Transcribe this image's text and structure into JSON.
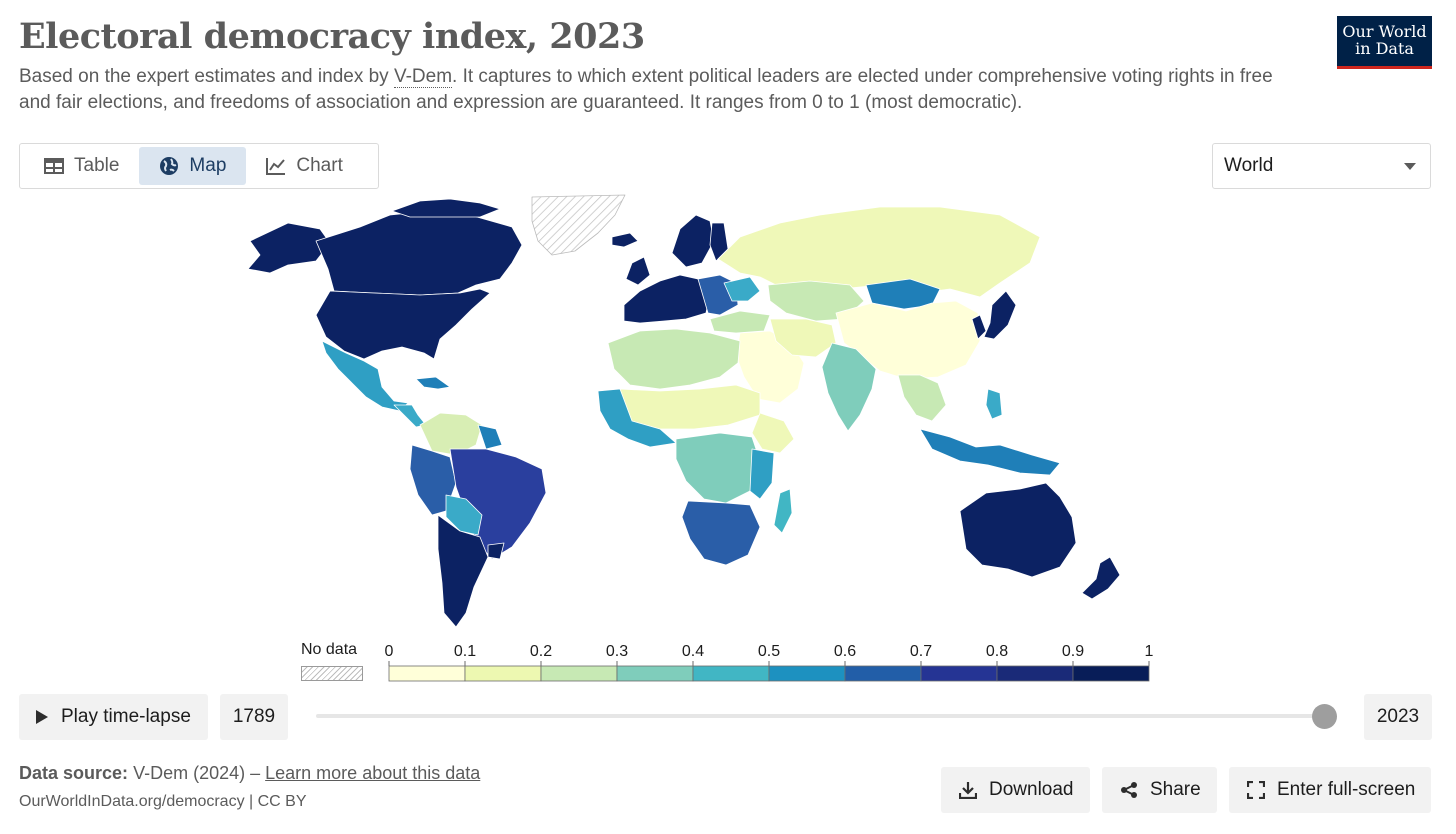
{
  "header": {
    "title": "Electoral democracy index, 2023",
    "subtitle_pre": "Based on the expert estimates and index by ",
    "subtitle_link": "V-Dem",
    "subtitle_post": ". It captures to which extent political leaders are elected under comprehensive voting rights in free and fair elections, and freedoms of association and expression are guaranteed. It ranges from 0 to 1 (most democratic).",
    "logo_line1": "Our World",
    "logo_line2": "in Data"
  },
  "tabs": [
    {
      "label": "Table",
      "icon": "table-icon"
    },
    {
      "label": "Map",
      "icon": "globe-icon",
      "active": true
    },
    {
      "label": "Chart",
      "icon": "line-chart-icon"
    }
  ],
  "region_select": {
    "selected": "World"
  },
  "legend": {
    "no_data_label": "No data",
    "ticks": [
      "0",
      "0.1",
      "0.2",
      "0.3",
      "0.4",
      "0.5",
      "0.6",
      "0.7",
      "0.8",
      "0.9",
      "1"
    ],
    "colors": [
      "#ffffd9",
      "#edf8b1",
      "#c7e9b4",
      "#7fcdbb",
      "#41b6c4",
      "#1d91c0",
      "#225ea8",
      "#253494",
      "#1a2a78",
      "#081d58"
    ]
  },
  "timeline": {
    "play_label": "Play time-lapse",
    "start_year": "1789",
    "end_year": "2023",
    "position": 1.0
  },
  "footer": {
    "source_label": "Data source:",
    "source_text": "V-Dem (2024) –",
    "learn_more": "Learn more about this data",
    "url_text": "OurWorldInData.org/democracy | CC BY",
    "download_label": "Download",
    "share_label": "Share",
    "fullscreen_label": "Enter full-screen"
  }
}
